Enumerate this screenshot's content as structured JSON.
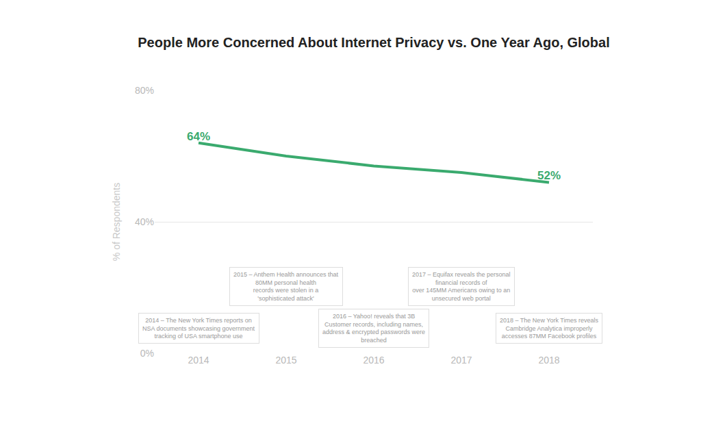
{
  "chart_data": {
    "type": "line",
    "title": "People More Concerned About Internet Privacy vs. One Year Ago, Global",
    "y_label": "% of Respondents",
    "categories": [
      "2014",
      "2015",
      "2016",
      "2017",
      "2018"
    ],
    "values": [
      64,
      60,
      57,
      55,
      52
    ],
    "value_labels": [
      "64%",
      null,
      null,
      null,
      "52%"
    ],
    "data_labels": true,
    "color": "#3aaa6e",
    "line_style": "solid",
    "marker": "none",
    "ylim": [
      0,
      80
    ],
    "yticks": [
      {
        "value": 0,
        "label": "0%"
      },
      {
        "value": 40,
        "label": "40%"
      },
      {
        "value": 80,
        "label": "80%"
      }
    ],
    "grid": true,
    "annotations": [
      {
        "x": "2014",
        "text": [
          "2014 – The New York Times reports on",
          "NSA documents showcasing government",
          "tracking of USA smartphone use"
        ]
      },
      {
        "x": "2015",
        "text": [
          "2015 – Anthem Health announces that",
          "80MM personal health",
          "records were stolen in a",
          "'sophisticated attack'"
        ]
      },
      {
        "x": "2016",
        "text": [
          "2016 – Yahoo! reveals that 3B",
          "Customer records, including names,",
          "address & encrypted passwords were",
          "breached"
        ]
      },
      {
        "x": "2017",
        "text": [
          "2017 – Equifax reveals the personal",
          "financial records of",
          "over 145MM Americans owing to an",
          "unsecured web portal"
        ]
      },
      {
        "x": "2018",
        "text": [
          "2018 – The New York Times reveals",
          "Cambridge Analytica improperly",
          "accesses 87MM Facebook profiles"
        ]
      }
    ]
  }
}
